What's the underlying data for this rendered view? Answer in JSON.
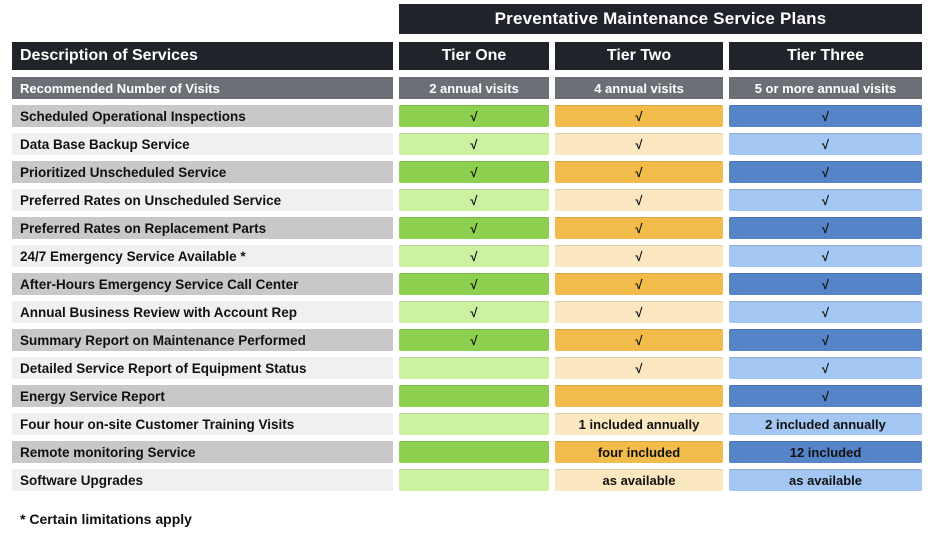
{
  "title": "Preventative Maintenance Service Plans",
  "columns": {
    "description_header": "Description of Services",
    "tiers": [
      "Tier One",
      "Tier Two",
      "Tier Three"
    ]
  },
  "recommended": {
    "label": "Recommended Number of Visits",
    "values": [
      "2 annual visits",
      "4 annual visits",
      "5 or more annual visits"
    ]
  },
  "check_symbol": "√",
  "rows": [
    {
      "label": "Scheduled Operational Inspections",
      "cells": [
        "√",
        "√",
        "√"
      ]
    },
    {
      "label": "Data Base Backup Service",
      "cells": [
        "√",
        "√",
        "√"
      ]
    },
    {
      "label": "Prioritized Unscheduled Service",
      "cells": [
        "√",
        "√",
        "√"
      ]
    },
    {
      "label": "Preferred Rates on Unscheduled Service",
      "cells": [
        "√",
        "√",
        "√"
      ]
    },
    {
      "label": "Preferred Rates on Replacement Parts",
      "cells": [
        "√",
        "√",
        "√"
      ]
    },
    {
      "label": "24/7 Emergency Service Available *",
      "cells": [
        "√",
        "√",
        "√"
      ]
    },
    {
      "label": "After-Hours Emergency Service Call Center",
      "cells": [
        "√",
        "√",
        "√"
      ]
    },
    {
      "label": "Annual Business Review with Account Rep",
      "cells": [
        "√",
        "√",
        "√"
      ]
    },
    {
      "label": "Summary Report on Maintenance Performed",
      "cells": [
        "√",
        "√",
        "√"
      ]
    },
    {
      "label": "Detailed Service Report of Equipment Status",
      "cells": [
        "",
        "√",
        "√"
      ]
    },
    {
      "label": "Energy Service Report",
      "cells": [
        "",
        "",
        "√"
      ]
    },
    {
      "label": "Four hour on-site Customer Training Visits",
      "cells": [
        "",
        "1 included annually",
        "2 included annually"
      ]
    },
    {
      "label": "Remote monitoring Service",
      "cells": [
        "",
        "four included",
        "12 included"
      ]
    },
    {
      "label": "Software Upgrades",
      "cells": [
        "",
        "as available",
        "as available"
      ]
    }
  ],
  "footnote": "* Certain limitations apply",
  "colors": {
    "black": "#202329",
    "gray": "#6c7076",
    "label_dark": "#c8c8c8",
    "label_light": "#f0f0f0",
    "green_dark": "#8dd04f",
    "green_light": "#caf2a2",
    "orange_dark": "#f1bc4b",
    "orange_light": "#fbe7c0",
    "blue_dark": "#5584c8",
    "blue_light": "#a3c6f2"
  }
}
